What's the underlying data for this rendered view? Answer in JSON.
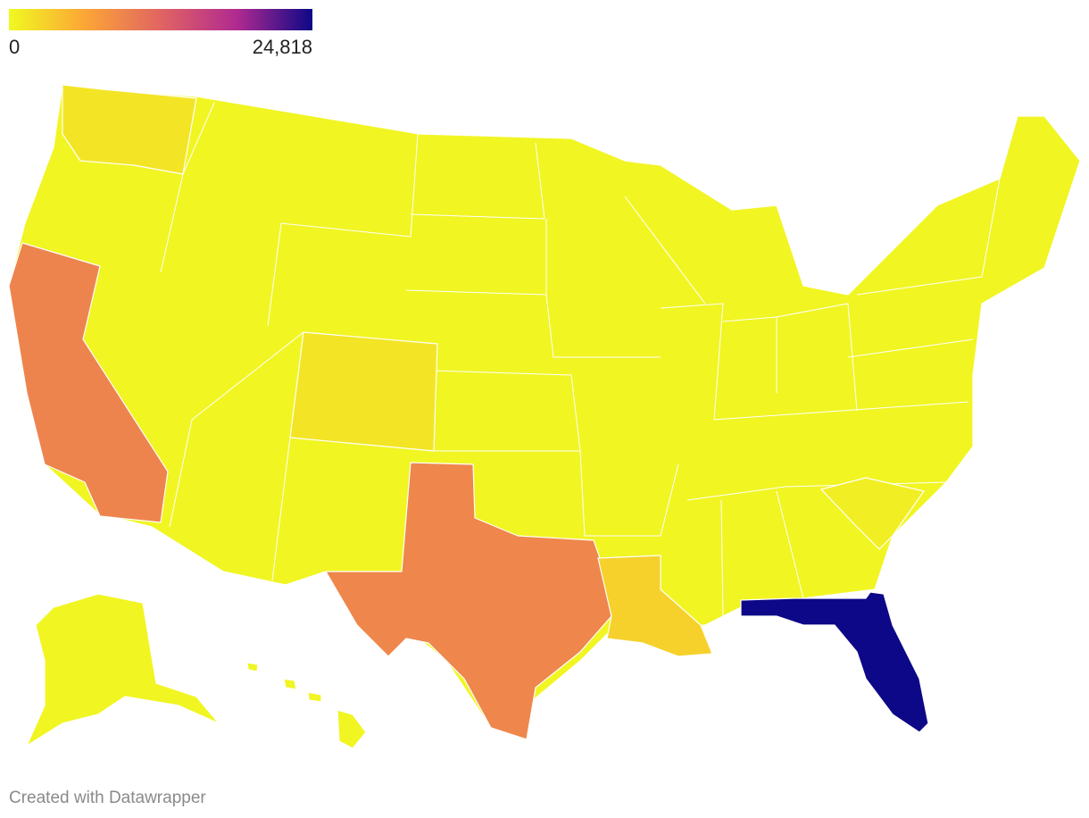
{
  "legend": {
    "min": 0,
    "max": {
      "value": 24818,
      "label": "24,818"
    },
    "colors": [
      "#f0f921",
      "#fca636",
      "#e16462",
      "#b12a90",
      "#0d0887"
    ]
  },
  "regions": {
    "values": [
      300,
      9400,
      9200,
      24818,
      3000,
      1500,
      1500,
      800
    ]
  },
  "footer": "Created with Datawrapper"
}
